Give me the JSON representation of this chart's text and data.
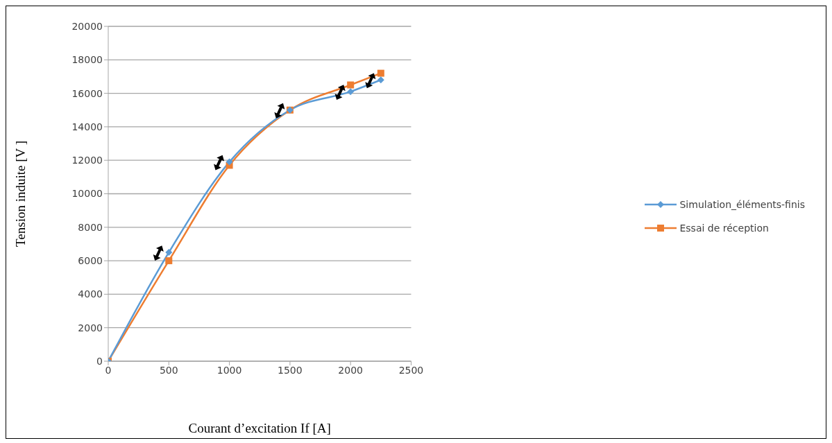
{
  "chart_data": {
    "type": "line",
    "xlabel": "Courant d’excitation If [A]",
    "ylabel": "Tension induite [V ]",
    "x": [
      0,
      500,
      1000,
      1500,
      2000,
      2250
    ],
    "series": [
      {
        "name": "Simulation_éléments-finis",
        "color": "#5b9bd5",
        "marker": "diamond",
        "values": [
          0,
          6500,
          11900,
          15000,
          16100,
          16800
        ]
      },
      {
        "name": "Essai de réception",
        "color": "#ed7d31",
        "marker": "square",
        "values": [
          0,
          6000,
          11700,
          15000,
          16500,
          17200
        ]
      }
    ],
    "xlim": [
      0,
      2500
    ],
    "xticks": [
      0,
      500,
      1000,
      1500,
      2000,
      2500
    ],
    "ylim": [
      0,
      20000
    ],
    "yticks": [
      0,
      2000,
      4000,
      6000,
      8000,
      10000,
      12000,
      14000,
      16000,
      18000,
      20000
    ],
    "grid": "y",
    "legend": "right",
    "line_style": "solid"
  }
}
